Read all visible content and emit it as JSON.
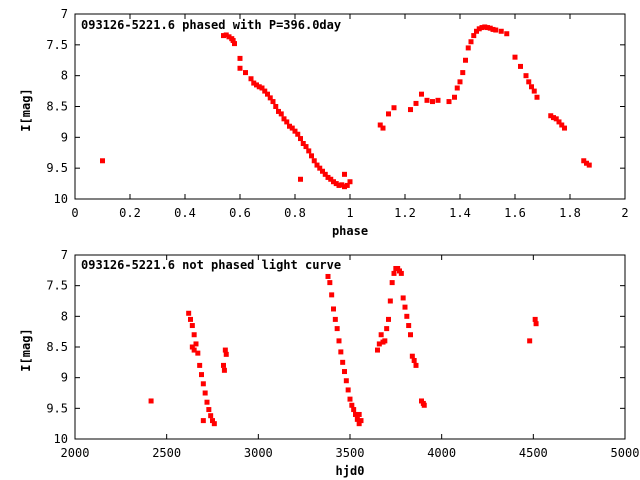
{
  "chart_data": [
    {
      "type": "scatter",
      "title": "093126-5221.6 phased with P=396.0day",
      "xlabel": "phase",
      "ylabel": "I[mag]",
      "xlim": [
        0,
        2
      ],
      "ylim": [
        7,
        10
      ],
      "y_inverted": true,
      "grid": false,
      "xticks": [
        "0",
        "0.2",
        "0.4",
        "0.6",
        "0.8",
        "1",
        "1.2",
        "1.4",
        "1.6",
        "1.8",
        "2"
      ],
      "yticks": [
        "7",
        "7.5",
        "8",
        "8.5",
        "9",
        "9.5",
        "10"
      ],
      "marker_color": "#ff0000",
      "points": [
        [
          0.1,
          9.38
        ],
        [
          0.54,
          7.35
        ],
        [
          0.55,
          7.34
        ],
        [
          0.56,
          7.37
        ],
        [
          0.57,
          7.4
        ],
        [
          0.575,
          7.43
        ],
        [
          0.58,
          7.48
        ],
        [
          0.6,
          7.72
        ],
        [
          0.6,
          7.88
        ],
        [
          0.62,
          7.95
        ],
        [
          0.64,
          8.05
        ],
        [
          0.65,
          8.12
        ],
        [
          0.66,
          8.15
        ],
        [
          0.67,
          8.18
        ],
        [
          0.68,
          8.2
        ],
        [
          0.69,
          8.25
        ],
        [
          0.7,
          8.3
        ],
        [
          0.71,
          8.36
        ],
        [
          0.72,
          8.42
        ],
        [
          0.73,
          8.5
        ],
        [
          0.74,
          8.58
        ],
        [
          0.75,
          8.62
        ],
        [
          0.76,
          8.7
        ],
        [
          0.77,
          8.75
        ],
        [
          0.78,
          8.82
        ],
        [
          0.79,
          8.85
        ],
        [
          0.8,
          8.9
        ],
        [
          0.81,
          8.95
        ],
        [
          0.82,
          9.02
        ],
        [
          0.83,
          9.1
        ],
        [
          0.84,
          9.15
        ],
        [
          0.85,
          9.22
        ],
        [
          0.86,
          9.3
        ],
        [
          0.87,
          9.38
        ],
        [
          0.88,
          9.45
        ],
        [
          0.89,
          9.5
        ],
        [
          0.9,
          9.55
        ],
        [
          0.91,
          9.6
        ],
        [
          0.92,
          9.65
        ],
        [
          0.93,
          9.68
        ],
        [
          0.94,
          9.72
        ],
        [
          0.95,
          9.75
        ],
        [
          0.96,
          9.78
        ],
        [
          0.97,
          9.77
        ],
        [
          0.98,
          9.8
        ],
        [
          0.99,
          9.78
        ],
        [
          1.0,
          9.72
        ],
        [
          0.98,
          9.6
        ],
        [
          0.82,
          9.68
        ],
        [
          1.11,
          8.8
        ],
        [
          1.12,
          8.85
        ],
        [
          1.14,
          8.62
        ],
        [
          1.16,
          8.52
        ],
        [
          1.22,
          8.55
        ],
        [
          1.24,
          8.45
        ],
        [
          1.26,
          8.3
        ],
        [
          1.28,
          8.4
        ],
        [
          1.3,
          8.42
        ],
        [
          1.32,
          8.4
        ],
        [
          1.36,
          8.42
        ],
        [
          1.38,
          8.35
        ],
        [
          1.39,
          8.2
        ],
        [
          1.4,
          8.1
        ],
        [
          1.41,
          7.95
        ],
        [
          1.42,
          7.75
        ],
        [
          1.43,
          7.55
        ],
        [
          1.44,
          7.45
        ],
        [
          1.45,
          7.35
        ],
        [
          1.46,
          7.28
        ],
        [
          1.47,
          7.24
        ],
        [
          1.48,
          7.22
        ],
        [
          1.49,
          7.21
        ],
        [
          1.5,
          7.22
        ],
        [
          1.51,
          7.23
        ],
        [
          1.52,
          7.25
        ],
        [
          1.53,
          7.26
        ],
        [
          1.55,
          7.28
        ],
        [
          1.57,
          7.32
        ],
        [
          1.6,
          7.7
        ],
        [
          1.62,
          7.85
        ],
        [
          1.64,
          8.0
        ],
        [
          1.65,
          8.1
        ],
        [
          1.66,
          8.18
        ],
        [
          1.67,
          8.25
        ],
        [
          1.68,
          8.35
        ],
        [
          1.73,
          8.65
        ],
        [
          1.74,
          8.68
        ],
        [
          1.75,
          8.7
        ],
        [
          1.76,
          8.75
        ],
        [
          1.77,
          8.8
        ],
        [
          1.78,
          8.85
        ],
        [
          1.85,
          9.38
        ],
        [
          1.86,
          9.42
        ],
        [
          1.87,
          9.45
        ]
      ]
    },
    {
      "type": "scatter",
      "title": "093126-5221.6 not phased light curve",
      "xlabel": "hjd0",
      "ylabel": "I[mag]",
      "xlim": [
        2000,
        5000
      ],
      "ylim": [
        7,
        10
      ],
      "y_inverted": true,
      "grid": false,
      "xticks": [
        "2000",
        "2500",
        "3000",
        "3500",
        "4000",
        "4500",
        "5000"
      ],
      "yticks": [
        "7",
        "7.5",
        "8",
        "8.5",
        "9",
        "9.5",
        "10"
      ],
      "marker_color": "#ff0000",
      "points": [
        [
          2415,
          9.38
        ],
        [
          2620,
          7.95
        ],
        [
          2630,
          8.05
        ],
        [
          2640,
          8.15
        ],
        [
          2650,
          8.3
        ],
        [
          2660,
          8.45
        ],
        [
          2670,
          8.6
        ],
        [
          2680,
          8.8
        ],
        [
          2690,
          8.95
        ],
        [
          2700,
          9.1
        ],
        [
          2710,
          9.25
        ],
        [
          2720,
          9.4
        ],
        [
          2730,
          9.52
        ],
        [
          2740,
          9.62
        ],
        [
          2750,
          9.7
        ],
        [
          2760,
          9.75
        ],
        [
          2700,
          9.7
        ],
        [
          2640,
          8.5
        ],
        [
          2650,
          8.55
        ],
        [
          2810,
          8.8
        ],
        [
          2815,
          8.88
        ],
        [
          2820,
          8.55
        ],
        [
          2825,
          8.62
        ],
        [
          3380,
          7.35
        ],
        [
          3390,
          7.45
        ],
        [
          3400,
          7.65
        ],
        [
          3410,
          7.88
        ],
        [
          3420,
          8.05
        ],
        [
          3430,
          8.2
        ],
        [
          3440,
          8.4
        ],
        [
          3450,
          8.58
        ],
        [
          3460,
          8.75
        ],
        [
          3470,
          8.9
        ],
        [
          3480,
          9.05
        ],
        [
          3490,
          9.2
        ],
        [
          3500,
          9.35
        ],
        [
          3510,
          9.45
        ],
        [
          3520,
          9.52
        ],
        [
          3530,
          9.6
        ],
        [
          3540,
          9.68
        ],
        [
          3550,
          9.75
        ],
        [
          3560,
          9.7
        ],
        [
          3550,
          9.6
        ],
        [
          3650,
          8.55
        ],
        [
          3660,
          8.45
        ],
        [
          3670,
          8.3
        ],
        [
          3680,
          8.42
        ],
        [
          3690,
          8.4
        ],
        [
          3700,
          8.2
        ],
        [
          3710,
          8.05
        ],
        [
          3720,
          7.75
        ],
        [
          3730,
          7.45
        ],
        [
          3740,
          7.3
        ],
        [
          3750,
          7.22
        ],
        [
          3760,
          7.22
        ],
        [
          3770,
          7.26
        ],
        [
          3780,
          7.3
        ],
        [
          3790,
          7.7
        ],
        [
          3800,
          7.85
        ],
        [
          3810,
          8.0
        ],
        [
          3820,
          8.15
        ],
        [
          3830,
          8.3
        ],
        [
          3840,
          8.65
        ],
        [
          3850,
          8.72
        ],
        [
          3860,
          8.8
        ],
        [
          3890,
          9.38
        ],
        [
          3900,
          9.42
        ],
        [
          3905,
          9.45
        ],
        [
          4480,
          8.4
        ],
        [
          4510,
          8.05
        ],
        [
          4515,
          8.12
        ]
      ]
    }
  ]
}
